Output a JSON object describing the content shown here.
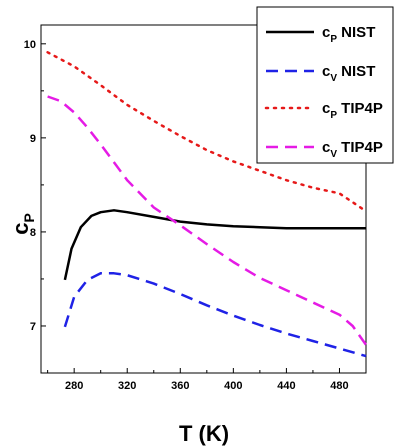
{
  "chart_data": {
    "type": "line",
    "xlabel": "T (K)",
    "ylabel": {
      "main": "c",
      "sub": "P"
    },
    "xlim": [
      255,
      500
    ],
    "ylim": [
      6.5,
      10.2
    ],
    "x_ticks": [
      280,
      320,
      360,
      400,
      440,
      480
    ],
    "y_ticks": [
      7,
      8,
      9,
      10
    ],
    "grid": false,
    "legend_position": "top-right",
    "series": [
      {
        "key": "cp_nist",
        "name": {
          "main": "c",
          "sub": "P",
          "rest": " NIST"
        },
        "color": "#000000",
        "dash": "solid",
        "x": [
          273,
          278,
          285,
          293,
          300,
          310,
          320,
          340,
          360,
          380,
          400,
          420,
          440,
          460,
          480,
          500
        ],
        "y": [
          7.49,
          7.82,
          8.05,
          8.17,
          8.21,
          8.23,
          8.21,
          8.16,
          8.11,
          8.08,
          8.06,
          8.05,
          8.04,
          8.04,
          8.04,
          8.04
        ]
      },
      {
        "key": "cv_nist",
        "name": {
          "main": "c",
          "sub": "V",
          "rest": " NIST"
        },
        "color": "#1f22e6",
        "dash": "dashed",
        "x": [
          273,
          280,
          290,
          300,
          310,
          320,
          340,
          360,
          380,
          400,
          420,
          440,
          460,
          480,
          500
        ],
        "y": [
          6.99,
          7.31,
          7.49,
          7.56,
          7.56,
          7.54,
          7.45,
          7.34,
          7.22,
          7.11,
          7.01,
          6.92,
          6.84,
          6.76,
          6.68
        ]
      },
      {
        "key": "cp_tip4p",
        "name": {
          "main": "c",
          "sub": "P",
          "rest": " TIP4P"
        },
        "color": "#e61919",
        "dash": "dotted",
        "x": [
          260,
          280,
          300,
          320,
          340,
          360,
          380,
          400,
          420,
          440,
          460,
          480,
          500
        ],
        "y": [
          9.91,
          9.76,
          9.56,
          9.35,
          9.18,
          9.02,
          8.87,
          8.75,
          8.65,
          8.55,
          8.47,
          8.41,
          8.22
        ]
      },
      {
        "key": "cv_tip4p",
        "name": {
          "main": "c",
          "sub": "V",
          "rest": " TIP4P"
        },
        "color": "#e51be5",
        "dash": "dashed",
        "x": [
          260,
          270,
          280,
          290,
          300,
          320,
          340,
          360,
          380,
          400,
          420,
          440,
          460,
          480,
          490,
          500
        ],
        "y": [
          9.44,
          9.39,
          9.27,
          9.11,
          8.93,
          8.55,
          8.26,
          8.07,
          7.87,
          7.68,
          7.51,
          7.38,
          7.25,
          7.12,
          7.0,
          6.8
        ]
      }
    ]
  }
}
